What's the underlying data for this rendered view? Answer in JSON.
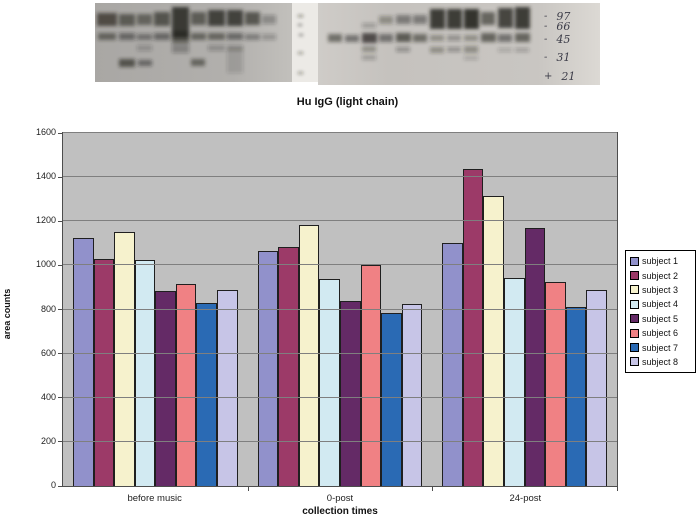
{
  "blot": {
    "caption": "Hu IgG (light chain)",
    "markers": [
      {
        "tick": "-",
        "label": "97"
      },
      {
        "tick": "-",
        "label": "66"
      },
      {
        "tick": "-",
        "label": "45"
      },
      {
        "tick": "-",
        "label": "31"
      },
      {
        "tick": "+",
        "label": "21"
      }
    ]
  },
  "chart_data": {
    "type": "bar",
    "title": "",
    "categories": [
      "before music",
      "0-post",
      "24-post"
    ],
    "series": [
      {
        "name": "subject 1",
        "color": "#9191cb",
        "values": [
          1125,
          1065,
          1100
        ]
      },
      {
        "name": "subject 2",
        "color": "#9c3a68",
        "values": [
          1030,
          1085,
          1435
        ]
      },
      {
        "name": "subject 3",
        "color": "#f6f2cd",
        "values": [
          1150,
          1185,
          1315
        ]
      },
      {
        "name": "subject 4",
        "color": "#d2eaf2",
        "values": [
          1025,
          940,
          945
        ]
      },
      {
        "name": "subject 5",
        "color": "#642a66",
        "values": [
          885,
          840,
          1170
        ]
      },
      {
        "name": "subject 6",
        "color": "#f08184",
        "values": [
          915,
          1000,
          925
        ]
      },
      {
        "name": "subject 7",
        "color": "#2a6ab4",
        "values": [
          830,
          785,
          810
        ]
      },
      {
        "name": "subject 8",
        "color": "#c7c5e7",
        "values": [
          890,
          825,
          890
        ]
      }
    ],
    "xlabel": "collection times",
    "ylabel": "area counts",
    "ylim": [
      0,
      1600
    ],
    "ytick_step": 200,
    "plot_bg": "#c0c0c0",
    "grid": true,
    "legend_position": "right"
  }
}
